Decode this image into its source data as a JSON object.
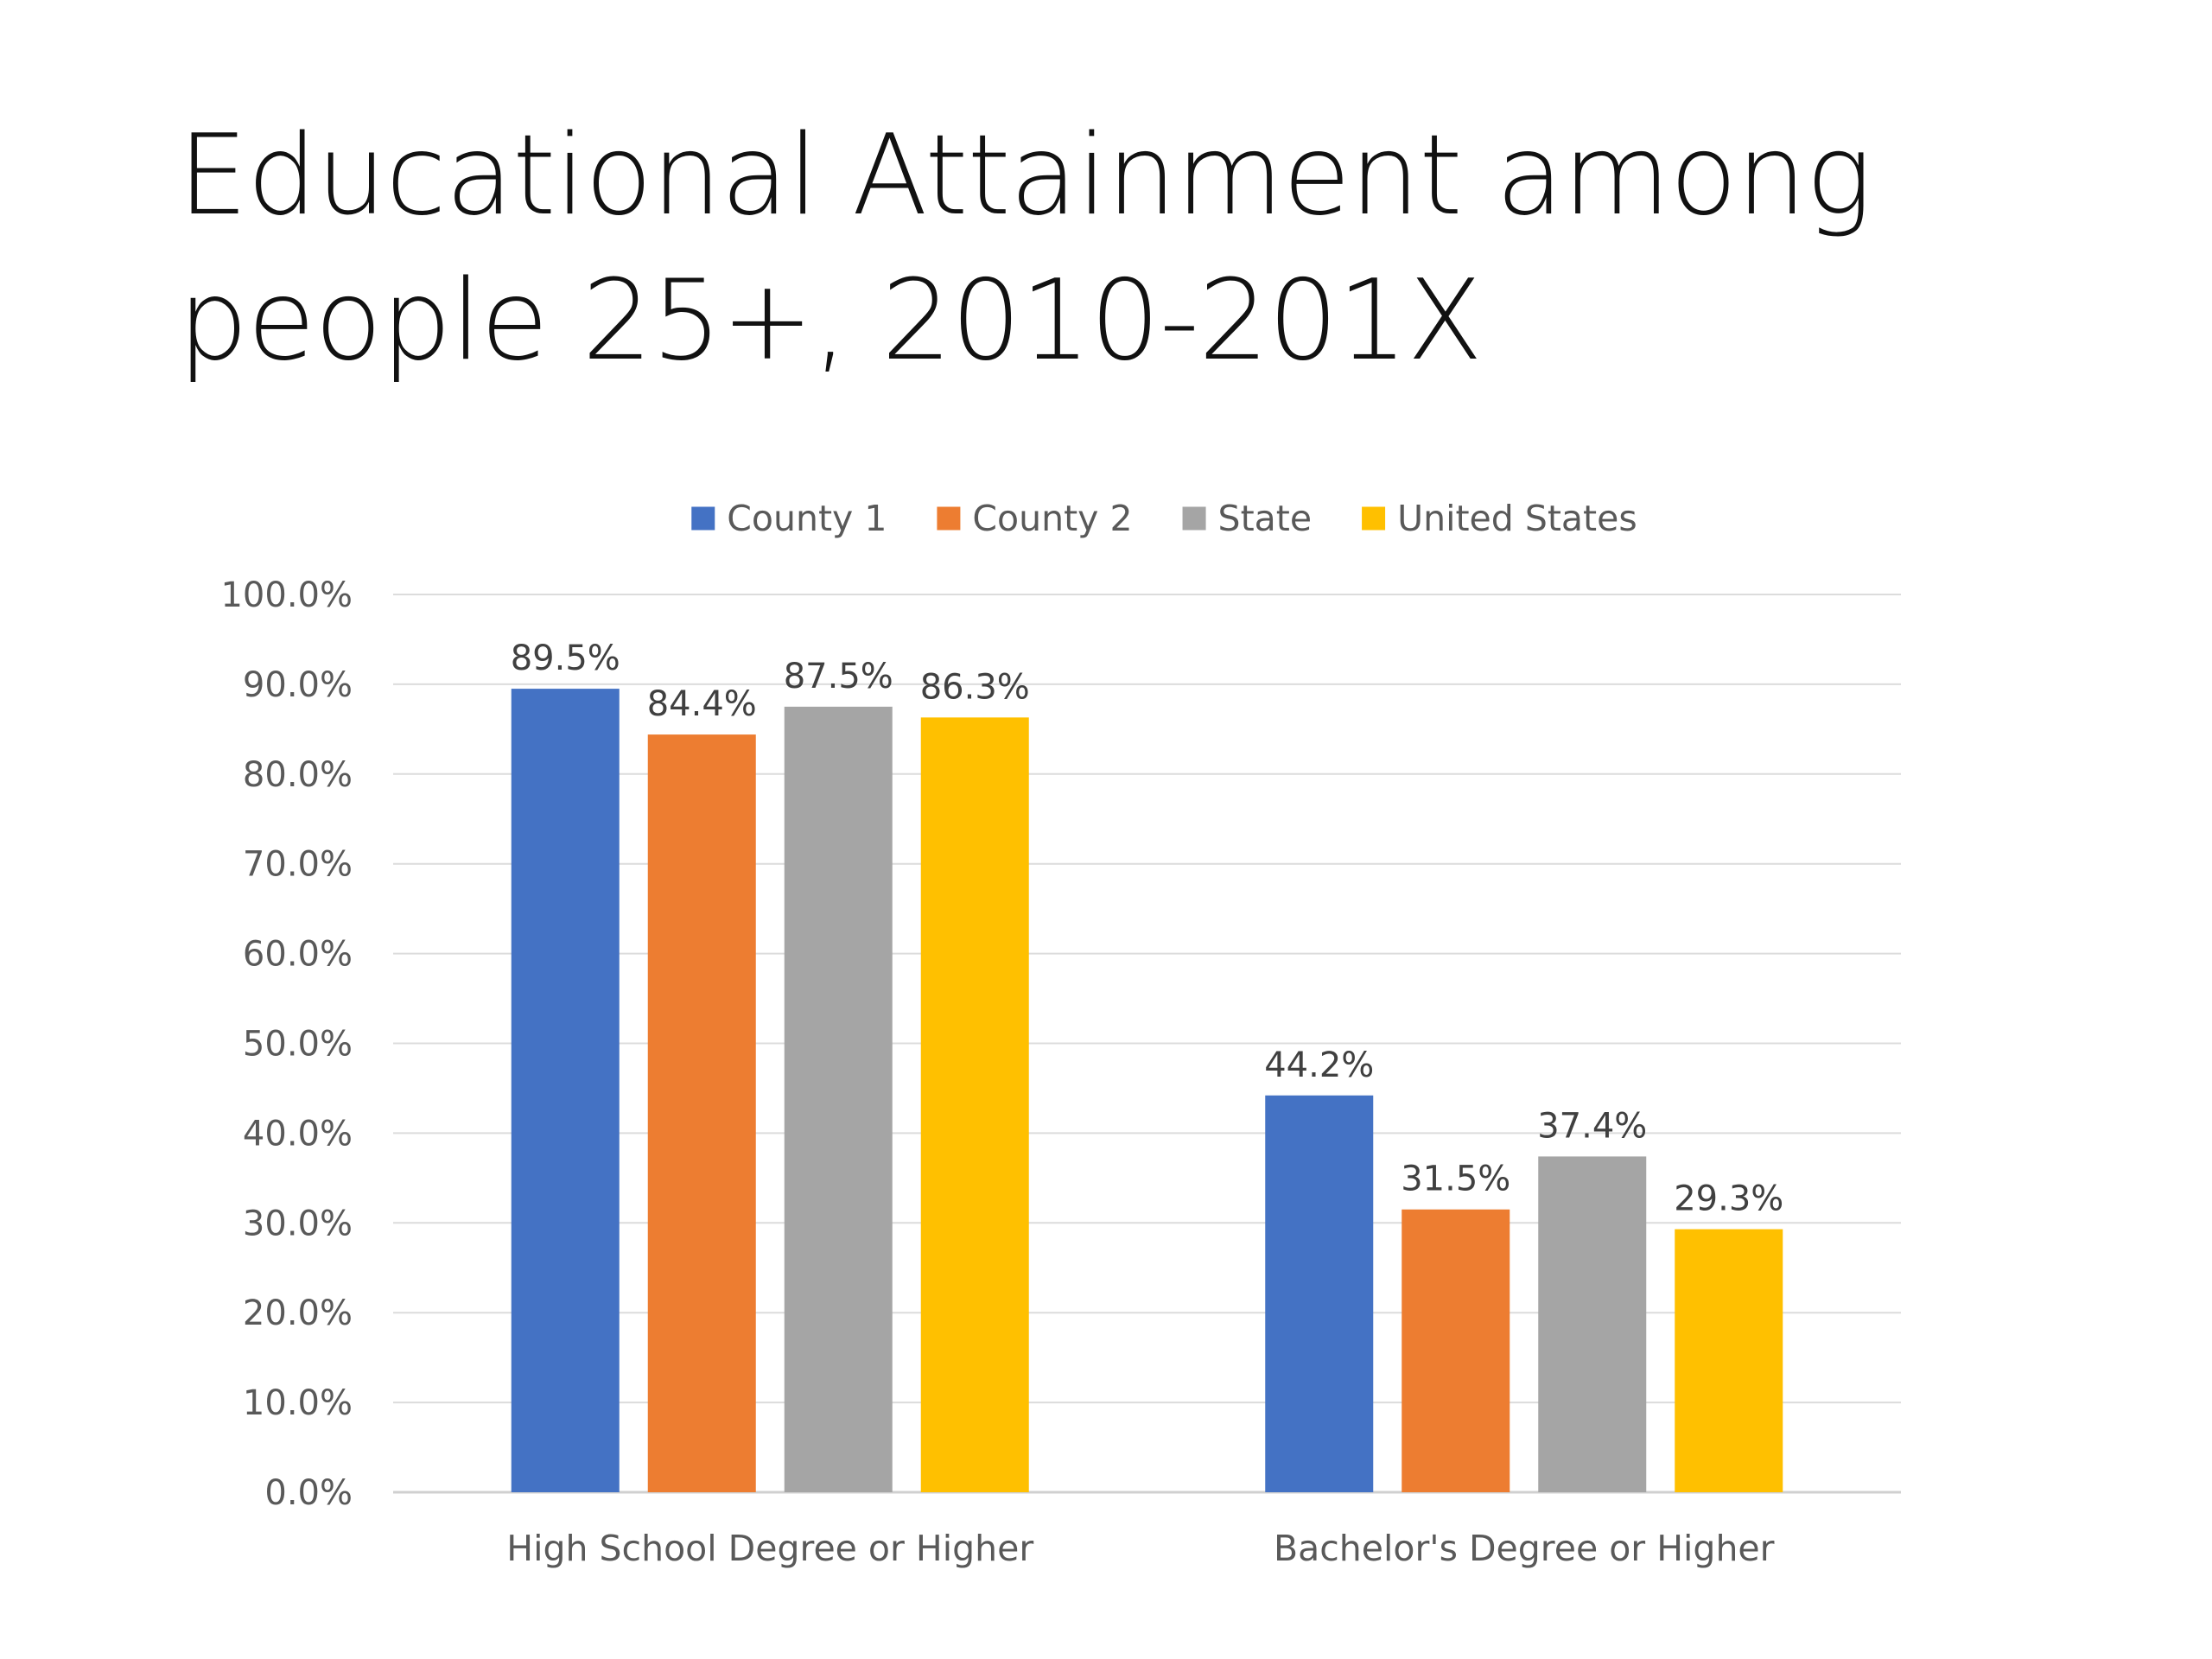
{
  "slide": {
    "title_line1": "Educational Attainment among",
    "title_line2": "people 25+, 2010-201X"
  },
  "chart_data": {
    "type": "bar",
    "categories": [
      "High School Degree or Higher",
      "Bachelor's Degree or Higher"
    ],
    "series": [
      {
        "name": "County 1",
        "values": [
          89.5,
          44.2
        ],
        "color": "#4472C4"
      },
      {
        "name": "County 2",
        "values": [
          84.4,
          31.5
        ],
        "color": "#ED7D31"
      },
      {
        "name": "State",
        "values": [
          87.5,
          37.4
        ],
        "color": "#A5A5A5"
      },
      {
        "name": "United States",
        "values": [
          86.3,
          29.3
        ],
        "color": "#FFC000"
      }
    ],
    "data_labels": [
      [
        "89.5%",
        "44.2%"
      ],
      [
        "84.4%",
        "31.5%"
      ],
      [
        "87.5%",
        "37.4%"
      ],
      [
        "86.3%",
        "29.3%"
      ]
    ],
    "y_ticks": [
      "0.0%",
      "10.0%",
      "20.0%",
      "30.0%",
      "40.0%",
      "50.0%",
      "60.0%",
      "70.0%",
      "80.0%",
      "90.0%",
      "100.0%"
    ],
    "ylim": [
      0,
      100
    ],
    "grid": true,
    "legend_position": "top",
    "xlabel": "",
    "ylabel": ""
  }
}
